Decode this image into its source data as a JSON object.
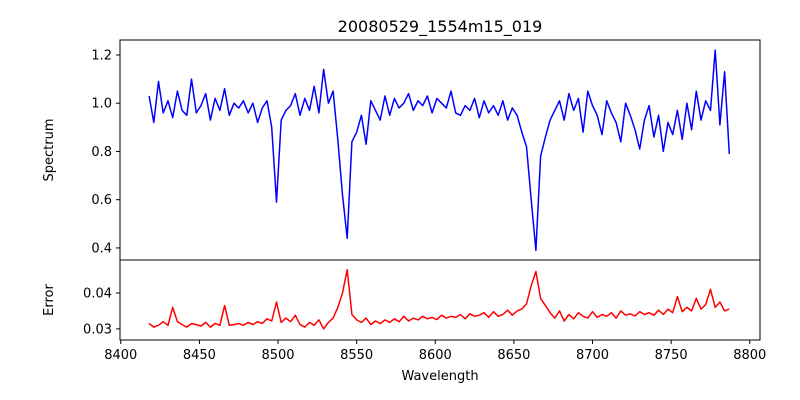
{
  "chart_data": {
    "type": "line",
    "title": "20080529_1554m15_019",
    "xlabel": "Wavelength",
    "xlim": [
      8399.5,
      8806.5
    ],
    "x_ticks": [
      8400,
      8450,
      8500,
      8550,
      8600,
      8650,
      8700,
      8750,
      8800
    ],
    "x_start": 8418,
    "x_step": 3,
    "panels": [
      {
        "name": "spectrum",
        "ylabel": "Spectrum",
        "ylim": [
          0.35,
          1.262
        ],
        "y_ticks": [
          0.4,
          0.6,
          0.8,
          1.0,
          1.2
        ],
        "y_tick_labels": [
          "0.4",
          "0.6",
          "0.8",
          "1.0",
          "1.2"
        ],
        "color": "#0000ff",
        "values": [
          1.03,
          0.92,
          1.09,
          0.96,
          1.01,
          0.94,
          1.05,
          0.97,
          0.95,
          1.1,
          0.96,
          0.99,
          1.04,
          0.93,
          1.02,
          0.97,
          1.06,
          0.95,
          1.0,
          0.98,
          1.01,
          0.96,
          1.0,
          0.92,
          0.98,
          1.01,
          0.9,
          0.59,
          0.93,
          0.97,
          0.99,
          1.04,
          0.95,
          1.02,
          0.97,
          1.07,
          0.96,
          1.14,
          1.0,
          1.05,
          0.85,
          0.62,
          0.44,
          0.84,
          0.88,
          0.95,
          0.83,
          1.01,
          0.97,
          0.93,
          1.03,
          0.95,
          1.02,
          0.98,
          1.0,
          1.04,
          0.97,
          1.01,
          0.99,
          1.03,
          0.96,
          1.02,
          1.0,
          0.98,
          1.05,
          0.96,
          0.95,
          0.99,
          0.97,
          1.02,
          0.94,
          1.01,
          0.96,
          0.99,
          0.95,
          1.01,
          0.93,
          0.98,
          0.95,
          0.88,
          0.82,
          0.6,
          0.39,
          0.78,
          0.86,
          0.93,
          0.97,
          1.01,
          0.93,
          1.04,
          0.97,
          1.02,
          0.88,
          1.05,
          0.99,
          0.95,
          0.87,
          1.01,
          0.96,
          0.92,
          0.84,
          1.0,
          0.95,
          0.89,
          0.81,
          0.93,
          0.99,
          0.86,
          0.95,
          0.8,
          0.92,
          0.87,
          0.97,
          0.85,
          1.0,
          0.89,
          1.05,
          0.93,
          1.01,
          0.97,
          1.22,
          0.91,
          1.13,
          0.79
        ]
      },
      {
        "name": "error",
        "ylabel": "Error",
        "ylim": [
          0.0269,
          0.0492
        ],
        "y_ticks": [
          0.03,
          0.04
        ],
        "y_tick_labels": [
          "0.03",
          "0.04"
        ],
        "color": "#ff0000",
        "values": [
          0.0315,
          0.0305,
          0.031,
          0.032,
          0.031,
          0.036,
          0.032,
          0.0312,
          0.0305,
          0.0315,
          0.0312,
          0.0308,
          0.0318,
          0.0305,
          0.0315,
          0.031,
          0.0365,
          0.031,
          0.0312,
          0.0315,
          0.031,
          0.0318,
          0.0312,
          0.032,
          0.0315,
          0.0328,
          0.0322,
          0.0375,
          0.0318,
          0.033,
          0.032,
          0.0338,
          0.0312,
          0.0305,
          0.0318,
          0.031,
          0.0325,
          0.03,
          0.0318,
          0.033,
          0.036,
          0.04,
          0.0465,
          0.034,
          0.0325,
          0.0318,
          0.033,
          0.0312,
          0.0322,
          0.0315,
          0.0325,
          0.0318,
          0.0328,
          0.032,
          0.0335,
          0.0322,
          0.033,
          0.0325,
          0.0335,
          0.0328,
          0.0332,
          0.0326,
          0.0338,
          0.033,
          0.0335,
          0.0332,
          0.034,
          0.0328,
          0.0342,
          0.0335,
          0.0338,
          0.0345,
          0.0332,
          0.0348,
          0.0335,
          0.034,
          0.0352,
          0.0338,
          0.035,
          0.0355,
          0.037,
          0.042,
          0.046,
          0.0385,
          0.0365,
          0.0345,
          0.033,
          0.035,
          0.0322,
          0.034,
          0.0328,
          0.0345,
          0.0335,
          0.033,
          0.0348,
          0.0332,
          0.034,
          0.0335,
          0.0345,
          0.033,
          0.035,
          0.0338,
          0.0342,
          0.0336,
          0.0348,
          0.034,
          0.0345,
          0.0338,
          0.0352,
          0.034,
          0.0355,
          0.0345,
          0.039,
          0.0348,
          0.036,
          0.035,
          0.0385,
          0.0355,
          0.0368,
          0.041,
          0.036,
          0.0375,
          0.035,
          0.0355
        ]
      }
    ]
  }
}
